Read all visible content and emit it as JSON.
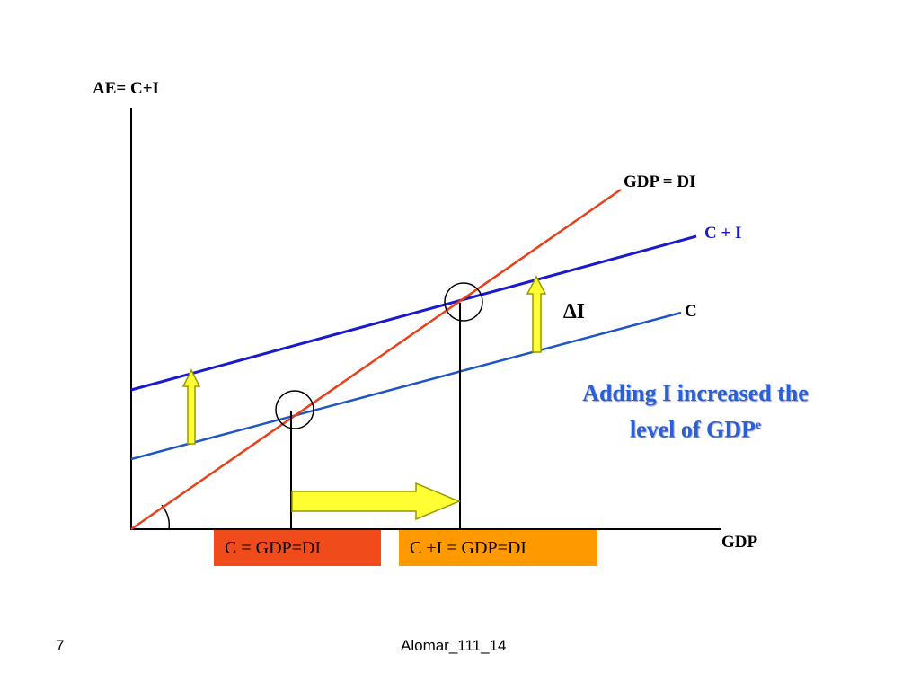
{
  "diagram": {
    "y_axis_label": "AE= C+I",
    "x_axis_label": "GDP",
    "lines": {
      "gdp_di": {
        "label": "GDP = DI",
        "color": "#e8401a"
      },
      "c_plus_i": {
        "label": "C + I",
        "color": "#1a1acc"
      },
      "c": {
        "label": "C",
        "color": "#1f55c8"
      }
    },
    "delta_label": "∆I",
    "note_line1": "Adding I increased the",
    "note_line2_prefix": "level of GDP",
    "note_line2_sup": "e",
    "box_c": "C = GDP=DI",
    "box_ci": "C +I = GDP=DI",
    "colors": {
      "arrow_fill": "#ffff33",
      "arrow_stroke": "#999900",
      "axis": "#000000",
      "box_c": "#f04b1a",
      "box_ci": "#ff9900",
      "note_text": "#2a5fd8"
    }
  },
  "footer": {
    "page_number": "7",
    "source": "Alomar_111_14"
  }
}
